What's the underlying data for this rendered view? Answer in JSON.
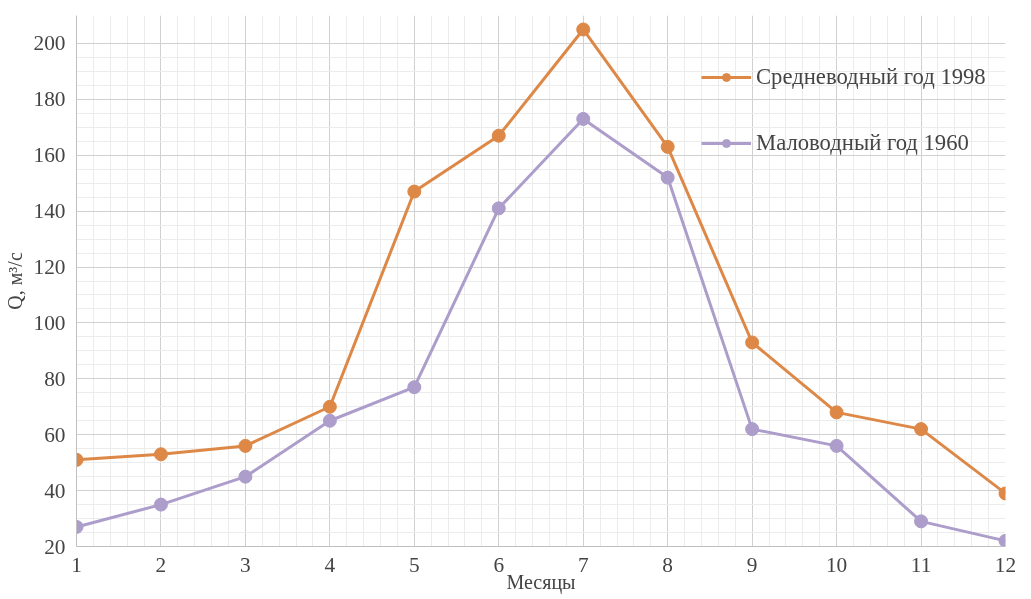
{
  "chart_data": {
    "type": "line",
    "xlabel": "Месяцы",
    "ylabel": "Q, м³/с",
    "x": [
      1,
      2,
      3,
      4,
      5,
      6,
      7,
      8,
      9,
      10,
      11,
      12
    ],
    "series": [
      {
        "name": "Средневодный год 1998",
        "color": "#dd8846",
        "values": [
          51,
          53,
          56,
          70,
          147,
          167,
          205,
          163,
          93,
          68,
          62,
          39
        ]
      },
      {
        "name": "Маловодный год 1960",
        "color": "#ac9dcb",
        "values": [
          27,
          35,
          45,
          65,
          77,
          141,
          173,
          152,
          62,
          56,
          29,
          22
        ]
      }
    ],
    "xlim": [
      1,
      12
    ],
    "xticks": [
      1,
      2,
      3,
      4,
      5,
      6,
      7,
      8,
      9,
      10,
      11,
      12
    ],
    "ylim": [
      20,
      210
    ],
    "yticks": [
      20,
      40,
      60,
      80,
      100,
      120,
      140,
      160,
      180,
      200
    ],
    "grid": true,
    "legend": "right",
    "marker": "circle",
    "line_style": "solid"
  }
}
